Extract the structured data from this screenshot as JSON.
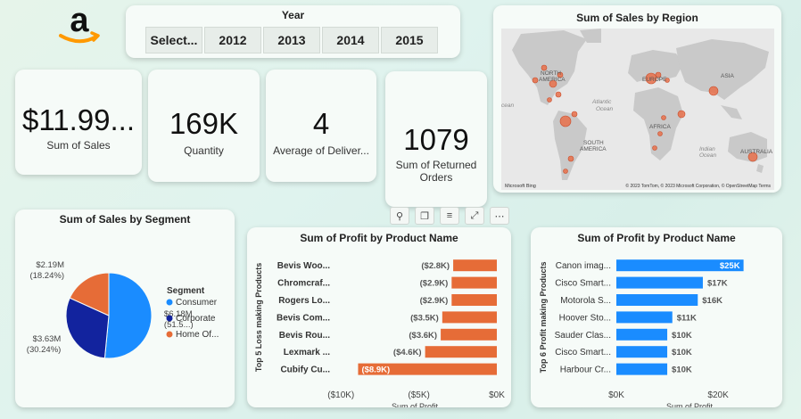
{
  "brand": {
    "logo_icon": "amazon-logo-icon",
    "colors": {
      "orange": "#ff9900",
      "black": "#111111"
    }
  },
  "year_slicer": {
    "title": "Year",
    "options": [
      "Select...",
      "2012",
      "2013",
      "2014",
      "2015"
    ]
  },
  "kpis": {
    "sales": {
      "value": "$11.99...",
      "label": "Sum of Sales"
    },
    "quantity": {
      "value": "169K",
      "label": "Quantity"
    },
    "delivery": {
      "value": "4",
      "label": "Average of Deliver..."
    },
    "returned": {
      "value": "1079",
      "label_line1": "Sum of Returned",
      "label_line2": "Orders"
    }
  },
  "map": {
    "title": "Sum of Sales by Region",
    "labels": [
      "NORTH",
      "AMERICA",
      "EUROPE",
      "ASIA",
      "Atlantic",
      "Ocean",
      "AFRICA",
      "SOUTH",
      "AMERICA",
      "Indian",
      "Ocean",
      "AUSTRALIA",
      "cean"
    ],
    "attribution": "© 2023 TomTom, © 2023 Microsoft Corporation, © OpenStreetMap  Terms",
    "bing_label": "Microsoft Bing",
    "colors": {
      "land": "#c9c9c9",
      "water": "#e8e8e8",
      "bubble": "#e8704a"
    }
  },
  "toolbar": {
    "icons": [
      "pin-icon",
      "copy-icon",
      "filter-icon",
      "focus-mode-icon",
      "more-options-icon"
    ],
    "glyphs": [
      "⚲",
      "❐",
      "≡",
      "⤢",
      "⋯"
    ]
  },
  "chart_data": [
    {
      "type": "pie",
      "title": "Sum of Sales by Segment",
      "legend_title": "Segment",
      "legend_position": "right",
      "categories": [
        "Consumer",
        "Corporate",
        "Home Of..."
      ],
      "colors": [
        "#1a8cff",
        "#12239e",
        "#e66c37"
      ],
      "percent": [
        51.52,
        30.24,
        18.24
      ],
      "data_labels": [
        [
          "$6.18M",
          "(51.5...)"
        ],
        [
          "$3.63M",
          "(30.24%)"
        ],
        [
          "$2.19M",
          "(18.24%)"
        ]
      ]
    },
    {
      "type": "bar",
      "orientation": "horizontal",
      "title": "Sum of Profit by Product Name",
      "ylabel": "Top 5 Loss making Products",
      "xlabel": "Sum of Profit",
      "categories": [
        "Bevis Woo...",
        "Chromcraf...",
        "Rogers Lo...",
        "Bevis Com...",
        "Bevis Rou...",
        "Lexmark ...",
        "Cubify Cu..."
      ],
      "values": [
        -2.8,
        -2.9,
        -2.9,
        -3.5,
        -3.6,
        -4.6,
        -8.9
      ],
      "value_labels": [
        "($2.8K)",
        "($2.9K)",
        "($2.9K)",
        "($3.5K)",
        "($3.6K)",
        "($4.6K)",
        "($8.9K)"
      ],
      "xticks": [
        "($10K)",
        "($5K)",
        "$0K"
      ],
      "xtick_values": [
        -10,
        -5,
        0
      ],
      "xlim": [
        -10.3,
        0
      ],
      "color": "#e66c37"
    },
    {
      "type": "bar",
      "orientation": "horizontal",
      "title": "Sum of Profit by Product Name",
      "ylabel": "Top 6 Profit making Products",
      "xlabel": "Sum of Profit",
      "categories": [
        "Canon imag...",
        "Cisco Smart...",
        "Motorola S...",
        "Hoover Sto...",
        "Sauder Clas...",
        "Cisco Smart...",
        "Harbour Cr..."
      ],
      "values": [
        25,
        17,
        16,
        11,
        10,
        10,
        10
      ],
      "value_labels": [
        "$25K",
        "$17K",
        "$16K",
        "$11K",
        "$10K",
        "$10K",
        "$10K"
      ],
      "xticks": [
        "$0K",
        "$20K"
      ],
      "xtick_values": [
        0,
        20
      ],
      "xlim": [
        0,
        27
      ],
      "color": "#1a8cff"
    }
  ]
}
